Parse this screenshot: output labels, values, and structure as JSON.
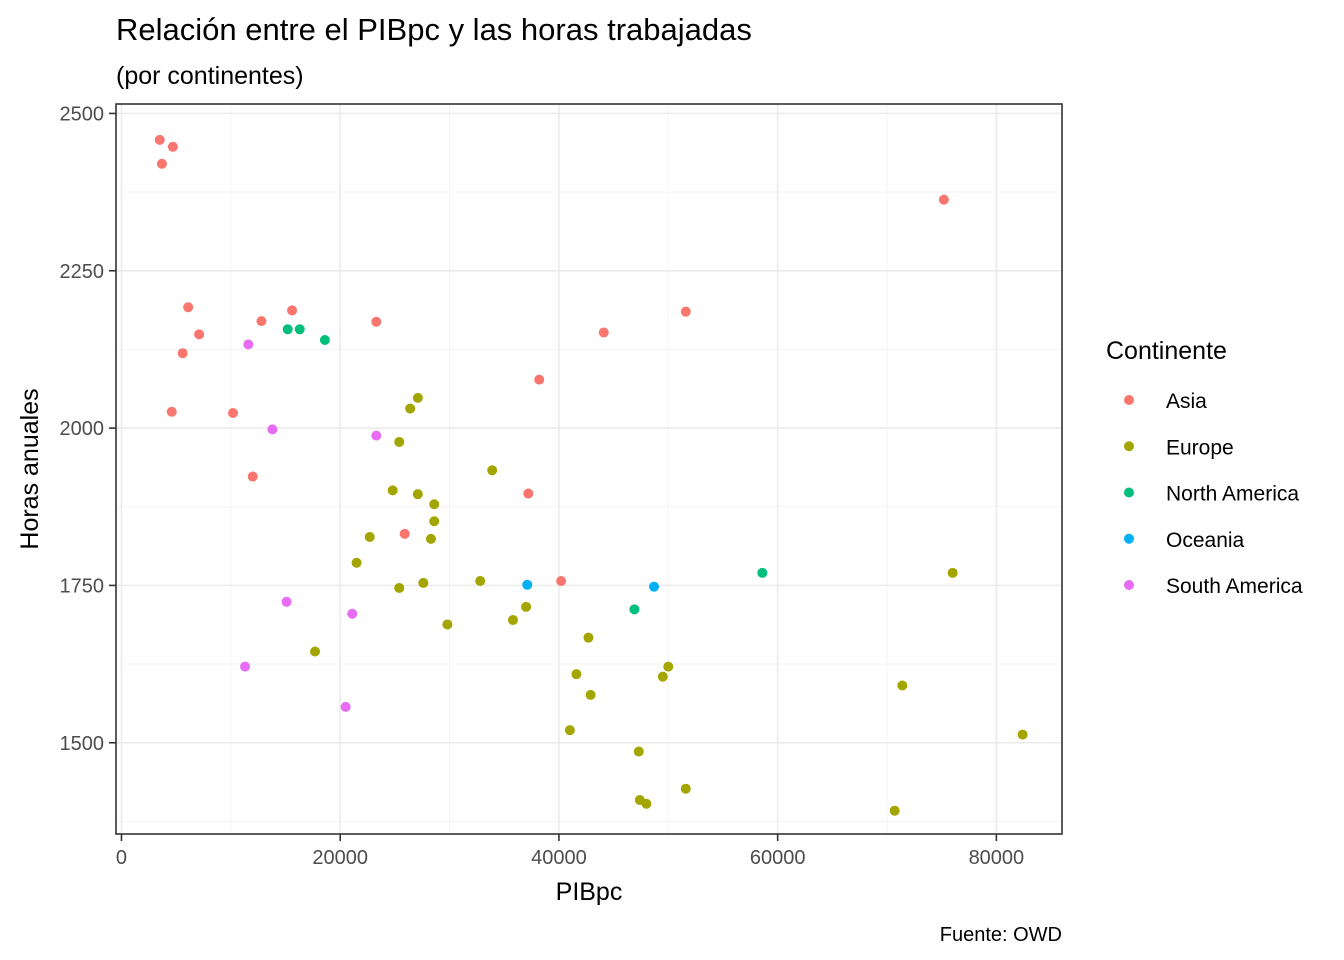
{
  "chart_data": {
    "type": "scatter",
    "title": "Relación entre el PIBpc y las horas trabajadas",
    "subtitle": "(por continentes)",
    "xlabel": "PIBpc",
    "ylabel": "Horas anuales",
    "caption": "Fuente: OWD",
    "xlim": [
      -500,
      86000
    ],
    "ylim": [
      1355,
      2515
    ],
    "x_ticks": [
      0,
      20000,
      40000,
      60000,
      80000
    ],
    "x_tick_labels": [
      "0",
      "20000",
      "40000",
      "60000",
      "80000"
    ],
    "y_ticks": [
      1500,
      1750,
      2000,
      2250,
      2500
    ],
    "y_tick_labels": [
      "1500",
      "1750",
      "2000",
      "2250",
      "2500"
    ],
    "grid": true,
    "legend": {
      "title": "Continente",
      "position": "right"
    },
    "series": [
      {
        "name": "Asia",
        "color": "#F8766D",
        "points": [
          [
            3500,
            2458
          ],
          [
            4700,
            2447
          ],
          [
            3700,
            2420
          ],
          [
            75200,
            2363
          ],
          [
            6100,
            2192
          ],
          [
            15600,
            2187
          ],
          [
            51600,
            2185
          ],
          [
            12800,
            2170
          ],
          [
            23300,
            2169
          ],
          [
            44100,
            2152
          ],
          [
            7100,
            2149
          ],
          [
            5600,
            2119
          ],
          [
            38200,
            2077
          ],
          [
            4600,
            2026
          ],
          [
            10200,
            2024
          ],
          [
            12000,
            1923
          ],
          [
            37200,
            1896
          ],
          [
            25900,
            1832
          ],
          [
            40200,
            1757
          ]
        ]
      },
      {
        "name": "Europe",
        "color": "#A3A500",
        "points": [
          [
            27100,
            2048
          ],
          [
            26400,
            2031
          ],
          [
            25400,
            1978
          ],
          [
            33900,
            1933
          ],
          [
            24800,
            1901
          ],
          [
            27100,
            1895
          ],
          [
            28600,
            1879
          ],
          [
            28600,
            1852
          ],
          [
            22700,
            1827
          ],
          [
            28300,
            1824
          ],
          [
            21500,
            1786
          ],
          [
            76000,
            1770
          ],
          [
            32800,
            1757
          ],
          [
            27600,
            1754
          ],
          [
            25400,
            1746
          ],
          [
            37000,
            1716
          ],
          [
            35800,
            1695
          ],
          [
            29800,
            1688
          ],
          [
            17700,
            1645
          ],
          [
            42700,
            1667
          ],
          [
            50000,
            1621
          ],
          [
            41600,
            1609
          ],
          [
            49500,
            1605
          ],
          [
            71400,
            1591
          ],
          [
            42900,
            1576
          ],
          [
            41000,
            1520
          ],
          [
            82400,
            1513
          ],
          [
            47300,
            1486
          ],
          [
            51600,
            1427
          ],
          [
            47400,
            1409
          ],
          [
            48000,
            1403
          ],
          [
            70700,
            1392
          ]
        ]
      },
      {
        "name": "North America",
        "color": "#00BF7D",
        "points": [
          [
            15200,
            2157
          ],
          [
            16300,
            2157
          ],
          [
            18600,
            2140
          ],
          [
            58600,
            1770
          ],
          [
            46900,
            1712
          ]
        ]
      },
      {
        "name": "Oceania",
        "color": "#00B0F6",
        "points": [
          [
            37100,
            1751
          ],
          [
            48700,
            1748
          ]
        ]
      },
      {
        "name": "South America",
        "color": "#E76BF3",
        "points": [
          [
            11600,
            2133
          ],
          [
            13800,
            1998
          ],
          [
            23300,
            1988
          ],
          [
            15100,
            1724
          ],
          [
            21100,
            1705
          ],
          [
            11300,
            1621
          ],
          [
            20500,
            1557
          ]
        ]
      }
    ]
  }
}
